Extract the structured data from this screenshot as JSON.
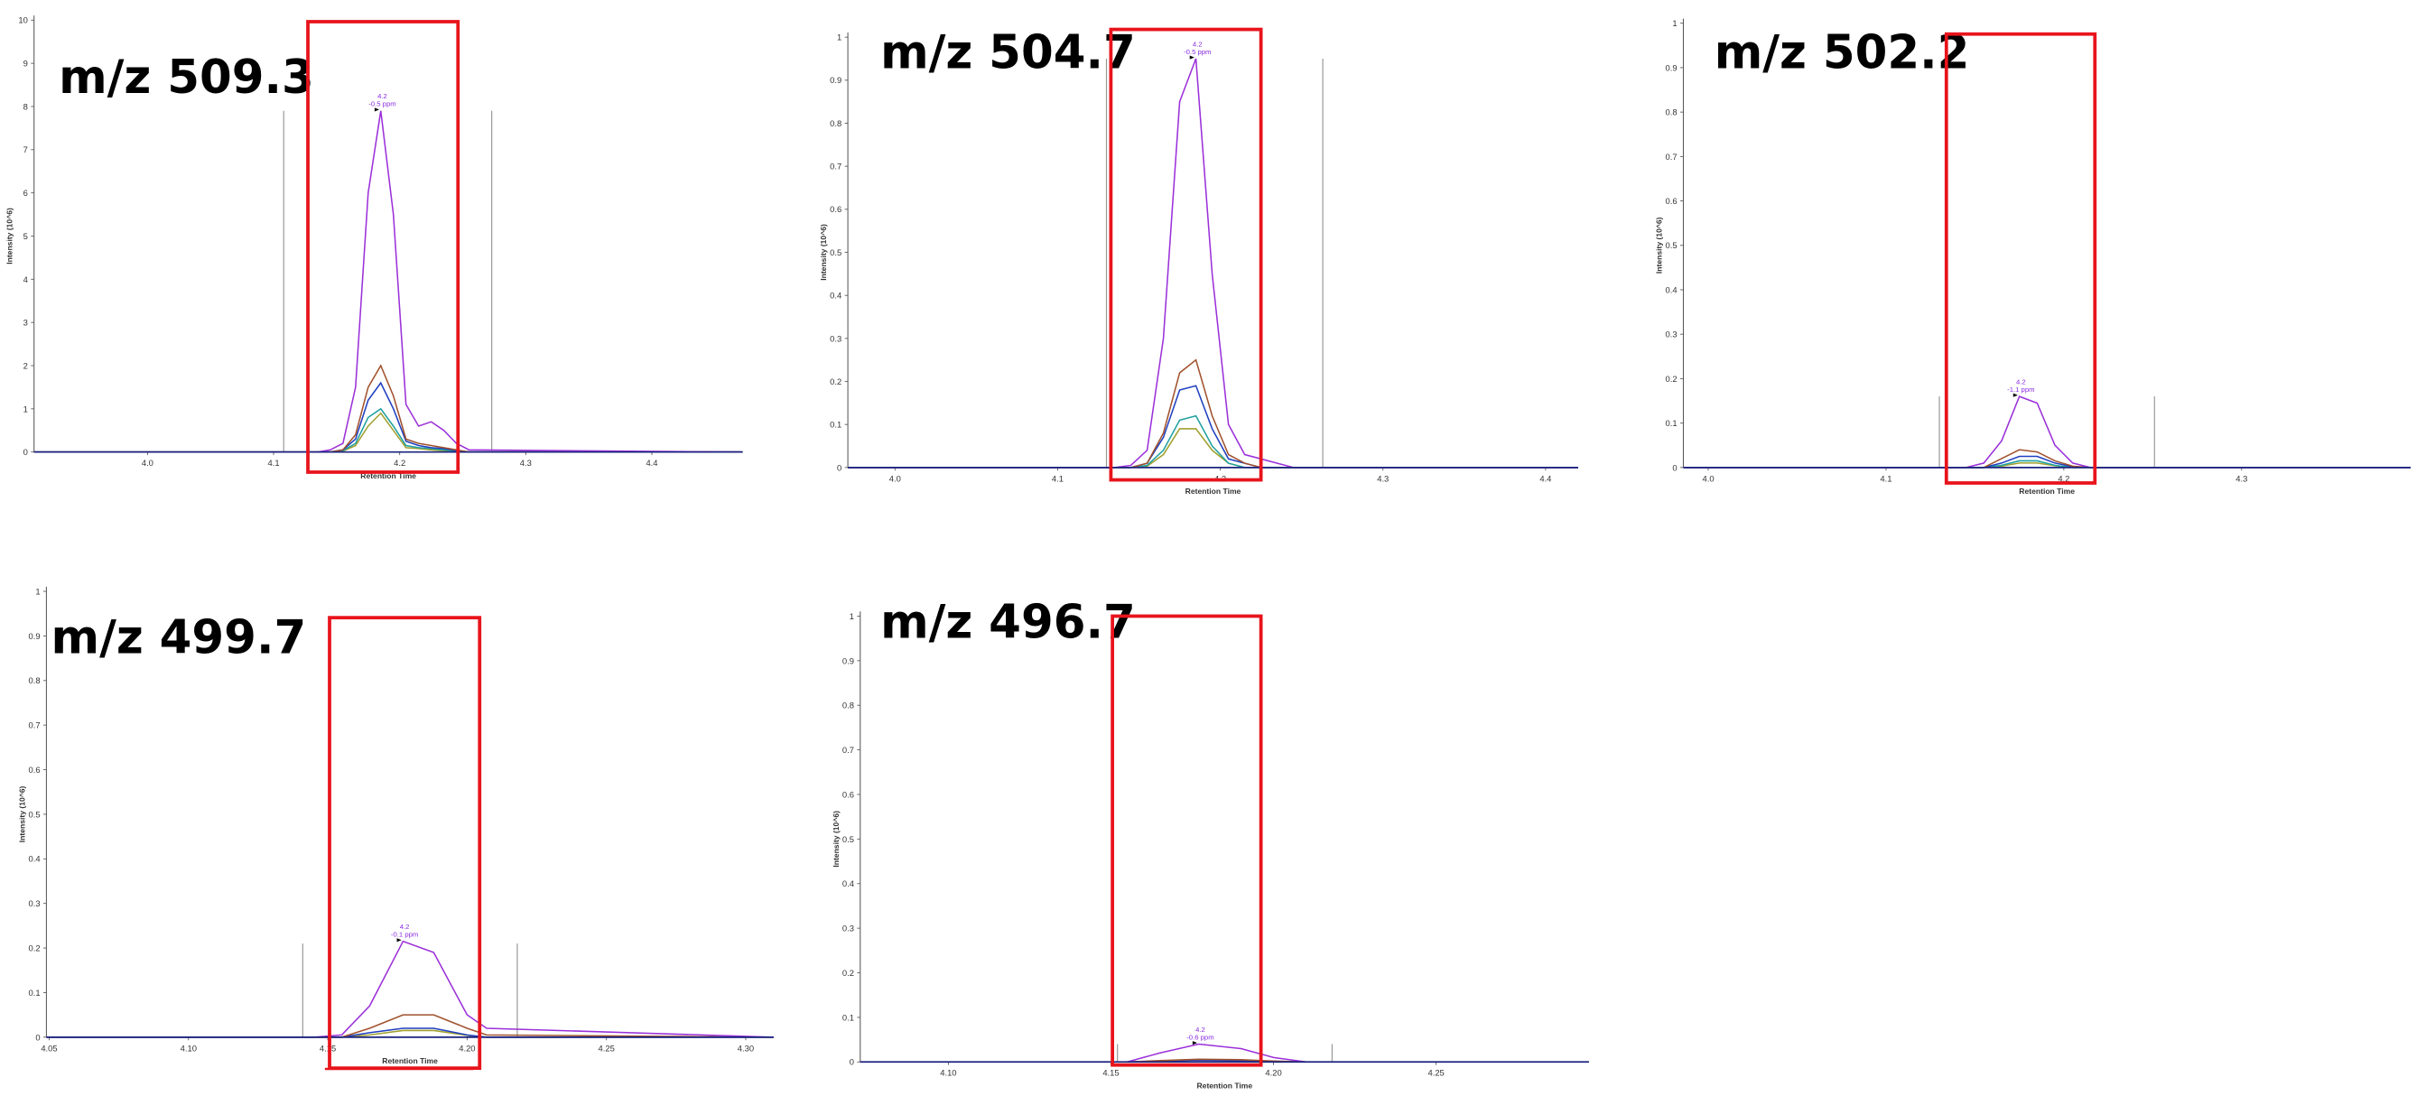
{
  "chart_data": [
    {
      "type": "line",
      "title": "m/z 509.3",
      "x_label": "Retention Time",
      "y_label": "Intensity (10^6)",
      "apex_label": "4.2",
      "apex_note": "-0.5 ppm",
      "xlim": [
        3.91,
        4.472
      ],
      "xticks": [
        {
          "value": 4.0,
          "label": "4.0"
        },
        4.1,
        4.2,
        4.3,
        4.4
      ],
      "ylim": [
        0,
        10
      ],
      "yticks": [
        0,
        1,
        2,
        3,
        4,
        5,
        6,
        7,
        8,
        9,
        10
      ],
      "x": [
        3.91,
        4.135,
        4.145,
        4.155,
        4.165,
        4.175,
        4.185,
        4.195,
        4.205,
        4.215,
        4.225,
        4.235,
        4.245,
        4.255,
        4.472
      ],
      "series": [
        {
          "color": "#9b30d9",
          "values": [
            0,
            0,
            0.05,
            0.2,
            1.5,
            6.0,
            7.9,
            5.5,
            1.1,
            0.6,
            0.7,
            0.5,
            0.2,
            0.05,
            0
          ]
        },
        {
          "color": "#a0522d",
          "values": [
            0,
            0,
            0,
            0.05,
            0.4,
            1.5,
            2.0,
            1.3,
            0.3,
            0.2,
            0.15,
            0.1,
            0.05,
            0,
            0
          ]
        },
        {
          "color": "#1f3fbf",
          "values": [
            0,
            0,
            0,
            0.05,
            0.3,
            1.2,
            1.6,
            1.0,
            0.25,
            0.15,
            0.1,
            0.08,
            0.03,
            0,
            0
          ]
        },
        {
          "color": "#20a0a0",
          "values": [
            0,
            0,
            0,
            0.03,
            0.2,
            0.8,
            1.0,
            0.6,
            0.15,
            0.1,
            0.08,
            0.05,
            0.02,
            0,
            0
          ]
        },
        {
          "color": "#a0a030",
          "values": [
            0,
            0,
            0,
            0.02,
            0.15,
            0.6,
            0.9,
            0.5,
            0.1,
            0.08,
            0.05,
            0.03,
            0.01,
            0,
            0
          ]
        }
      ],
      "boundaries": [
        {
          "x": 4.108,
          "y": 7.9
        },
        {
          "x": 4.273,
          "y": 7.9
        }
      ]
    },
    {
      "type": "line",
      "title": "m/z 504.7",
      "x_label": "Retention Time",
      "y_label": "Intensity (10^6)",
      "apex_label": "4.2",
      "apex_note": "-0.5 ppm",
      "xlim": [
        3.971,
        4.42
      ],
      "xticks": [
        {
          "value": 4.0,
          "label": "4.0"
        },
        4.1,
        4.2,
        4.3,
        4.4
      ],
      "ylim": [
        0,
        1
      ],
      "yticks": [
        0,
        0.1,
        0.2,
        0.3,
        0.4,
        0.5,
        0.6,
        0.7,
        0.8,
        0.9,
        1
      ],
      "x": [
        3.971,
        4.135,
        4.145,
        4.155,
        4.165,
        4.175,
        4.185,
        4.195,
        4.205,
        4.215,
        4.225,
        4.235,
        4.245,
        4.42
      ],
      "series": [
        {
          "color": "#9b30d9",
          "values": [
            0,
            0,
            0.005,
            0.04,
            0.3,
            0.85,
            0.95,
            0.45,
            0.1,
            0.03,
            0.02,
            0.01,
            0,
            0
          ]
        },
        {
          "color": "#a0522d",
          "values": [
            0,
            0,
            0,
            0.01,
            0.08,
            0.22,
            0.25,
            0.12,
            0.03,
            0.01,
            0,
            0,
            0,
            0
          ]
        },
        {
          "color": "#1f3fbf",
          "values": [
            0,
            0,
            0,
            0.01,
            0.07,
            0.18,
            0.19,
            0.09,
            0.02,
            0.01,
            0,
            0,
            0,
            0
          ]
        },
        {
          "color": "#20a0a0",
          "values": [
            0,
            0,
            0,
            0.005,
            0.04,
            0.11,
            0.12,
            0.05,
            0.01,
            0,
            0,
            0,
            0,
            0
          ]
        },
        {
          "color": "#a0a030",
          "values": [
            0,
            0,
            0,
            0.003,
            0.03,
            0.09,
            0.09,
            0.04,
            0.01,
            0,
            0,
            0,
            0,
            0
          ]
        }
      ],
      "boundaries": [
        {
          "x": 4.13,
          "y": 0.95
        },
        {
          "x": 4.263,
          "y": 0.95
        }
      ]
    },
    {
      "type": "line",
      "title": "m/z 502.2",
      "x_label": "Retention Time",
      "y_label": "Intensity (10^6)",
      "apex_label": "4.2",
      "apex_note": "-1.1 ppm",
      "xlim": [
        3.986,
        4.395
      ],
      "xticks": [
        {
          "value": 4.0,
          "label": "4.0"
        },
        4.1,
        4.2,
        4.3
      ],
      "ylim": [
        0,
        1
      ],
      "yticks": [
        0,
        0.1,
        0.2,
        0.3,
        0.4,
        0.5,
        0.6,
        0.7,
        0.8,
        0.9,
        1
      ],
      "x": [
        3.986,
        4.135,
        4.145,
        4.155,
        4.165,
        4.175,
        4.185,
        4.195,
        4.205,
        4.215,
        4.395
      ],
      "series": [
        {
          "color": "#9b30d9",
          "values": [
            0,
            0,
            0,
            0.01,
            0.06,
            0.16,
            0.145,
            0.05,
            0.01,
            0,
            0
          ]
        },
        {
          "color": "#a0522d",
          "values": [
            0,
            0,
            0,
            0,
            0.02,
            0.04,
            0.035,
            0.015,
            0.003,
            0,
            0
          ]
        },
        {
          "color": "#1f3fbf",
          "values": [
            0,
            0,
            0,
            0,
            0.01,
            0.025,
            0.025,
            0.01,
            0.002,
            0,
            0
          ]
        },
        {
          "color": "#20a0a0",
          "values": [
            0,
            0,
            0,
            0,
            0.005,
            0.015,
            0.015,
            0.005,
            0,
            0,
            0
          ]
        },
        {
          "color": "#a0a030",
          "values": [
            0,
            0,
            0,
            0,
            0.003,
            0.01,
            0.01,
            0.004,
            0,
            0,
            0
          ]
        }
      ],
      "boundaries": [
        {
          "x": 4.13,
          "y": 0.16
        },
        {
          "x": 4.251,
          "y": 0.16
        }
      ]
    },
    {
      "type": "line",
      "title": "m/z 499.7",
      "x_label": "Retention Time",
      "y_label": "Intensity (10^6)",
      "apex_label": "4.2",
      "apex_note": "-0.1 ppm",
      "xlim": [
        4.049,
        4.31
      ],
      "xticks": [
        {
          "value": 4.05,
          "label": "4.05"
        },
        {
          "value": 4.1,
          "label": "4.10"
        },
        {
          "value": 4.15,
          "label": "4.15"
        },
        {
          "value": 4.2,
          "label": "4.20"
        },
        {
          "value": 4.25,
          "label": "4.25"
        },
        {
          "value": 4.3,
          "label": "4.30"
        }
      ],
      "ylim": [
        0,
        1
      ],
      "yticks": [
        0,
        0.1,
        0.2,
        0.3,
        0.4,
        0.5,
        0.6,
        0.7,
        0.8,
        0.9,
        1
      ],
      "x": [
        4.049,
        4.145,
        4.155,
        4.165,
        4.177,
        4.188,
        4.2,
        4.207,
        4.31
      ],
      "series": [
        {
          "color": "#9b30d9",
          "values": [
            0,
            0,
            0.005,
            0.07,
            0.215,
            0.19,
            0.05,
            0.02,
            0
          ]
        },
        {
          "color": "#a0522d",
          "values": [
            0,
            0,
            0,
            0.02,
            0.05,
            0.05,
            0.02,
            0.005,
            0
          ]
        },
        {
          "color": "#1f3fbf",
          "values": [
            0,
            0,
            0,
            0.01,
            0.02,
            0.02,
            0.005,
            0,
            0
          ]
        },
        {
          "color": "#a0a030",
          "values": [
            0,
            0,
            0,
            0.005,
            0.015,
            0.015,
            0.004,
            0,
            0
          ]
        }
      ],
      "boundaries": [
        {
          "x": 4.141,
          "y": 0.21
        },
        {
          "x": 4.218,
          "y": 0.21
        }
      ]
    },
    {
      "type": "line",
      "title": "m/z 496.7",
      "x_label": "Retention Time",
      "y_label": "Intensity (10^6)",
      "apex_label": "4.2",
      "apex_note": "-0.6 ppm",
      "xlim": [
        4.0729,
        4.297
      ],
      "xticks": [
        {
          "value": 4.1,
          "label": "4.10"
        },
        {
          "value": 4.15,
          "label": "4.15"
        },
        {
          "value": 4.2,
          "label": "4.20"
        },
        {
          "value": 4.25,
          "label": "4.25"
        }
      ],
      "ylim": [
        0,
        1
      ],
      "yticks": [
        0,
        0.1,
        0.2,
        0.3,
        0.4,
        0.5,
        0.6,
        0.7,
        0.8,
        0.9,
        1
      ],
      "x": [
        4.0729,
        4.155,
        4.165,
        4.177,
        4.19,
        4.2,
        4.21,
        4.297
      ],
      "series": [
        {
          "color": "#9b30d9",
          "values": [
            0,
            0,
            0.02,
            0.04,
            0.03,
            0.01,
            0,
            0
          ]
        },
        {
          "color": "#a0522d",
          "values": [
            0,
            0,
            0.003,
            0.006,
            0.005,
            0.002,
            0,
            0
          ]
        },
        {
          "color": "#1f3fbf",
          "values": [
            0,
            0,
            0.002,
            0.004,
            0.003,
            0.001,
            0,
            0
          ]
        }
      ],
      "boundaries": [
        {
          "x": 4.152,
          "y": 0.04
        },
        {
          "x": 4.218,
          "y": 0.04
        }
      ]
    }
  ]
}
